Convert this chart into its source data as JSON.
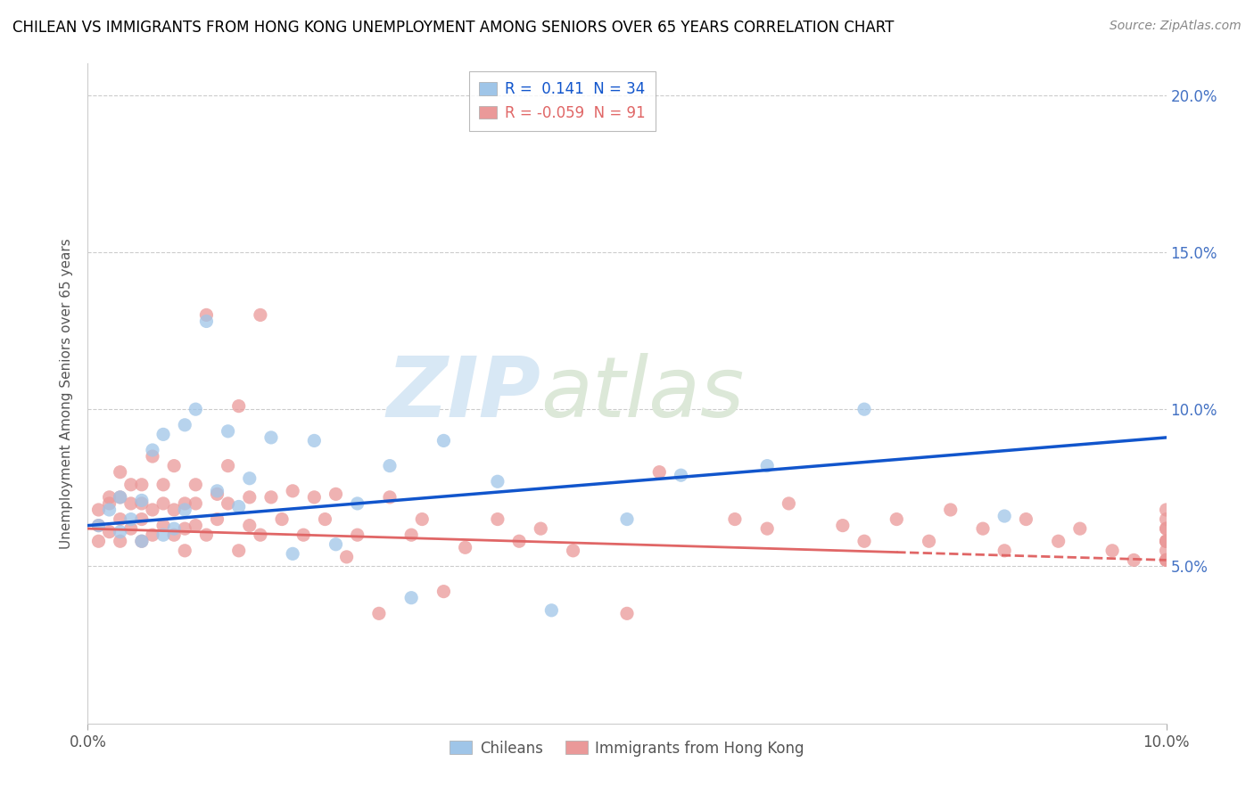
{
  "title": "CHILEAN VS IMMIGRANTS FROM HONG KONG UNEMPLOYMENT AMONG SENIORS OVER 65 YEARS CORRELATION CHART",
  "source": "Source: ZipAtlas.com",
  "ylabel": "Unemployment Among Seniors over 65 years",
  "xlim": [
    0.0,
    0.1
  ],
  "ylim": [
    0.0,
    0.21
  ],
  "yticks": [
    0.05,
    0.1,
    0.15,
    0.2
  ],
  "ytick_labels": [
    "5.0%",
    "10.0%",
    "15.0%",
    "20.0%"
  ],
  "chilean_R": 0.141,
  "chilean_N": 34,
  "hk_R": -0.059,
  "hk_N": 91,
  "chilean_color": "#9fc5e8",
  "hk_color": "#ea9999",
  "chilean_line_color": "#1155cc",
  "hk_line_color": "#e06666",
  "background_color": "#ffffff",
  "grid_color": "#cccccc",
  "title_color": "#000000",
  "legend_label_chilean": "Chileans",
  "legend_label_hk": "Immigrants from Hong Kong",
  "chilean_line_x0": 0.0,
  "chilean_line_y0": 0.063,
  "chilean_line_x1": 0.1,
  "chilean_line_y1": 0.091,
  "hk_line_x0": 0.0,
  "hk_line_y0": 0.062,
  "hk_line_x1": 0.1,
  "hk_line_y1": 0.052,
  "chilean_scatter_x": [
    0.001,
    0.002,
    0.003,
    0.003,
    0.004,
    0.005,
    0.005,
    0.006,
    0.007,
    0.007,
    0.008,
    0.009,
    0.009,
    0.01,
    0.011,
    0.012,
    0.013,
    0.014,
    0.015,
    0.017,
    0.019,
    0.021,
    0.023,
    0.025,
    0.028,
    0.03,
    0.033,
    0.038,
    0.043,
    0.05,
    0.055,
    0.063,
    0.072,
    0.085
  ],
  "chilean_scatter_y": [
    0.063,
    0.068,
    0.072,
    0.061,
    0.065,
    0.071,
    0.058,
    0.087,
    0.092,
    0.06,
    0.062,
    0.068,
    0.095,
    0.1,
    0.128,
    0.074,
    0.093,
    0.069,
    0.078,
    0.091,
    0.054,
    0.09,
    0.057,
    0.07,
    0.082,
    0.04,
    0.09,
    0.077,
    0.036,
    0.065,
    0.079,
    0.082,
    0.1,
    0.066
  ],
  "hk_scatter_x": [
    0.001,
    0.001,
    0.001,
    0.002,
    0.002,
    0.002,
    0.003,
    0.003,
    0.003,
    0.003,
    0.004,
    0.004,
    0.004,
    0.005,
    0.005,
    0.005,
    0.005,
    0.006,
    0.006,
    0.006,
    0.007,
    0.007,
    0.007,
    0.008,
    0.008,
    0.008,
    0.009,
    0.009,
    0.009,
    0.01,
    0.01,
    0.01,
    0.011,
    0.011,
    0.012,
    0.012,
    0.013,
    0.013,
    0.014,
    0.014,
    0.015,
    0.015,
    0.016,
    0.016,
    0.017,
    0.018,
    0.019,
    0.02,
    0.021,
    0.022,
    0.023,
    0.024,
    0.025,
    0.027,
    0.028,
    0.03,
    0.031,
    0.033,
    0.035,
    0.038,
    0.04,
    0.042,
    0.045,
    0.05,
    0.053,
    0.06,
    0.063,
    0.065,
    0.07,
    0.072,
    0.075,
    0.078,
    0.08,
    0.083,
    0.085,
    0.087,
    0.09,
    0.092,
    0.095,
    0.097,
    0.1,
    0.1,
    0.1,
    0.1,
    0.1,
    0.1,
    0.1,
    0.1,
    0.1,
    0.1,
    0.1
  ],
  "hk_scatter_y": [
    0.063,
    0.068,
    0.058,
    0.07,
    0.061,
    0.072,
    0.065,
    0.058,
    0.072,
    0.08,
    0.062,
    0.07,
    0.076,
    0.058,
    0.065,
    0.07,
    0.076,
    0.06,
    0.068,
    0.085,
    0.063,
    0.07,
    0.076,
    0.06,
    0.068,
    0.082,
    0.062,
    0.07,
    0.055,
    0.063,
    0.07,
    0.076,
    0.06,
    0.13,
    0.065,
    0.073,
    0.07,
    0.082,
    0.101,
    0.055,
    0.063,
    0.072,
    0.06,
    0.13,
    0.072,
    0.065,
    0.074,
    0.06,
    0.072,
    0.065,
    0.073,
    0.053,
    0.06,
    0.035,
    0.072,
    0.06,
    0.065,
    0.042,
    0.056,
    0.065,
    0.058,
    0.062,
    0.055,
    0.035,
    0.08,
    0.065,
    0.062,
    0.07,
    0.063,
    0.058,
    0.065,
    0.058,
    0.068,
    0.062,
    0.055,
    0.065,
    0.058,
    0.062,
    0.055,
    0.052,
    0.058,
    0.062,
    0.052,
    0.065,
    0.058,
    0.062,
    0.055,
    0.052,
    0.068,
    0.058,
    0.052
  ]
}
